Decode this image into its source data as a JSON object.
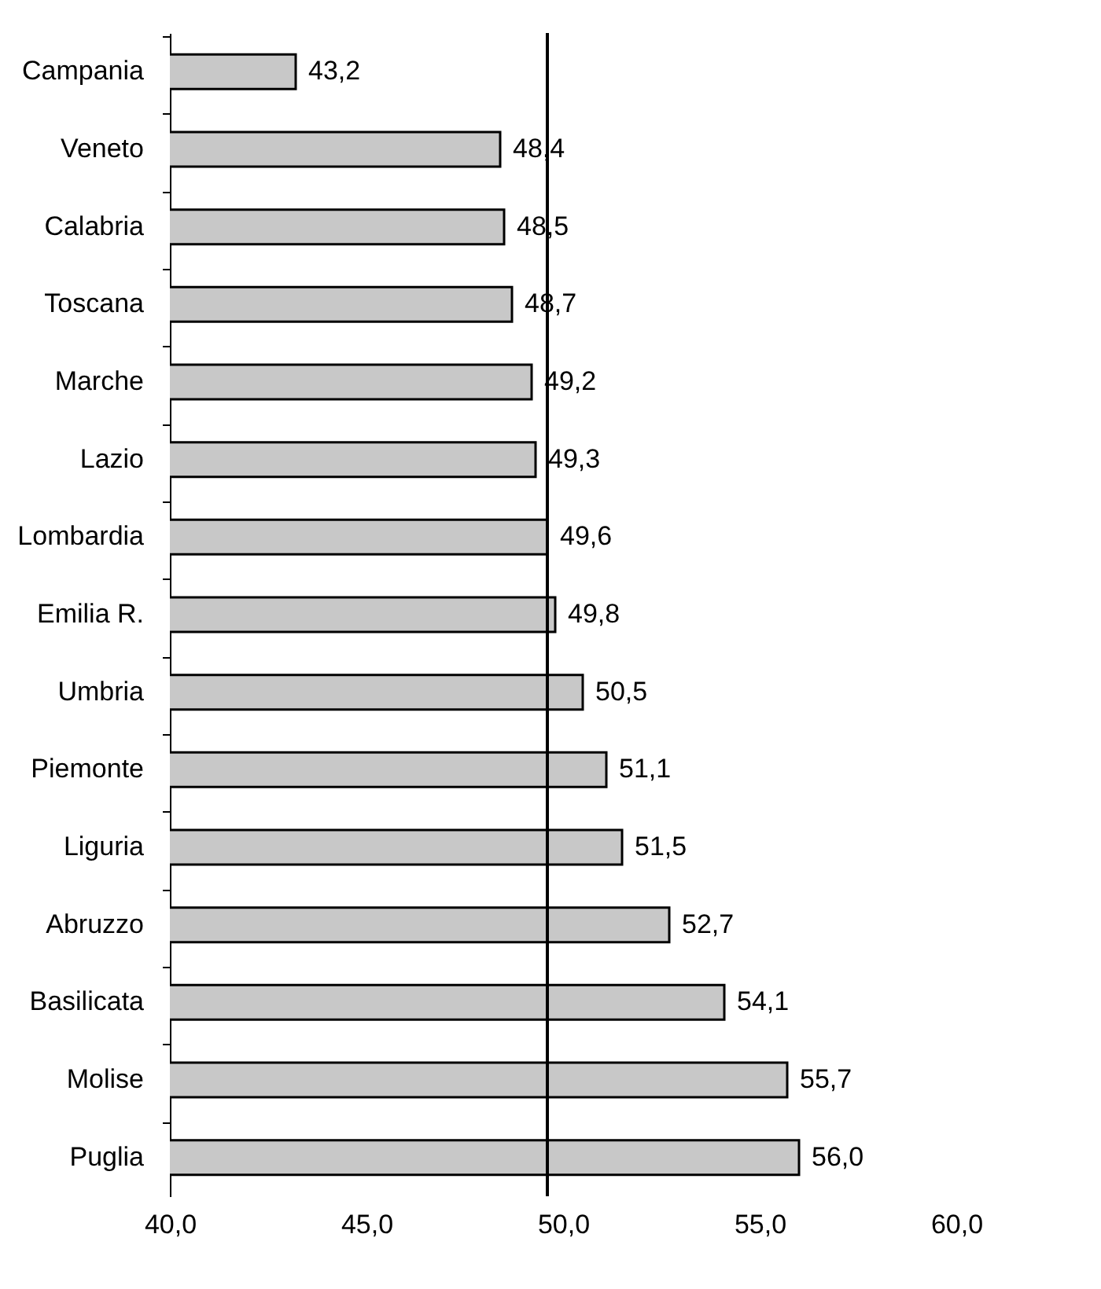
{
  "chart_data": {
    "type": "bar",
    "orientation": "horizontal",
    "grid": false,
    "value_labels": [
      "43,2",
      "48,4",
      "48,5",
      "48,7",
      "49,2",
      "49,3",
      "49,6",
      "49,8",
      "50,5",
      "51,1",
      "51,5",
      "52,7",
      "54,1",
      "55,7",
      "56,0"
    ],
    "categories": [
      "Campania",
      "Veneto",
      "Calabria",
      "Toscana",
      "Marche",
      "Lazio",
      "Lombardia",
      "Emilia R.",
      "Umbria",
      "Piemonte",
      "Liguria",
      "Abruzzo",
      "Basilicata",
      "Molise",
      "Puglia"
    ],
    "values": [
      43.2,
      48.4,
      48.5,
      48.7,
      49.2,
      49.3,
      49.6,
      49.8,
      50.5,
      51.1,
      51.5,
      52.7,
      54.1,
      55.7,
      56.0
    ],
    "color": "#c8c8c8",
    "xlim": [
      40,
      60
    ],
    "xticks": [
      {
        "value": 40,
        "label": "40,0"
      },
      {
        "value": 45,
        "label": "45,0"
      },
      {
        "value": 50,
        "label": "50,0"
      },
      {
        "value": 55,
        "label": "55,0"
      },
      {
        "value": 60,
        "label": "60,0"
      }
    ],
    "ref_lines": [
      {
        "axis": "x",
        "value": 49.6,
        "color": "#000000"
      }
    ]
  }
}
